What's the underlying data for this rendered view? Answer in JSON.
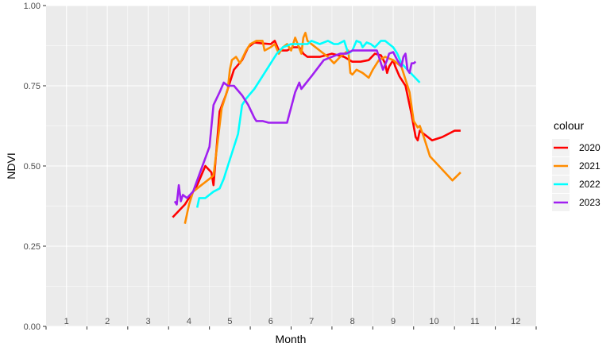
{
  "chart_data": {
    "type": "line",
    "title": "",
    "xlabel": "Month",
    "ylabel": "NDVI",
    "xlim": [
      0.5,
      12.5
    ],
    "ylim": [
      0,
      1
    ],
    "x_tick_labels": [
      "1",
      "2",
      "3",
      "4",
      "5",
      "6",
      "7",
      "8",
      "9",
      "10",
      "11",
      "12"
    ],
    "y_ticks": [
      0,
      0.25,
      0.5,
      0.75,
      1
    ],
    "y_tick_labels": [
      "0.00",
      "0.25",
      "0.50",
      "0.75",
      "1.00"
    ],
    "grid": true,
    "legend": {
      "title": "colour",
      "position": "right"
    },
    "series": [
      {
        "name": "2020",
        "color": "#ff0000",
        "points": [
          [
            3.6,
            0.34
          ],
          [
            3.9,
            0.38
          ],
          [
            4.2,
            0.44
          ],
          [
            4.4,
            0.5
          ],
          [
            4.55,
            0.48
          ],
          [
            4.6,
            0.44
          ],
          [
            4.75,
            0.67
          ],
          [
            4.9,
            0.72
          ],
          [
            5.1,
            0.8
          ],
          [
            5.3,
            0.83
          ],
          [
            5.45,
            0.87
          ],
          [
            5.6,
            0.885
          ],
          [
            5.8,
            0.882
          ],
          [
            6.0,
            0.88
          ],
          [
            6.1,
            0.89
          ],
          [
            6.2,
            0.86
          ],
          [
            6.4,
            0.86
          ],
          [
            6.55,
            0.87
          ],
          [
            6.7,
            0.87
          ],
          [
            6.8,
            0.85
          ],
          [
            6.9,
            0.84
          ],
          [
            7.2,
            0.84
          ],
          [
            7.5,
            0.85
          ],
          [
            7.8,
            0.84
          ],
          [
            8.0,
            0.825
          ],
          [
            8.2,
            0.825
          ],
          [
            8.4,
            0.83
          ],
          [
            8.55,
            0.85
          ],
          [
            8.7,
            0.845
          ],
          [
            8.8,
            0.82
          ],
          [
            8.85,
            0.79
          ],
          [
            8.9,
            0.81
          ],
          [
            9.0,
            0.83
          ],
          [
            9.05,
            0.81
          ],
          [
            9.15,
            0.78
          ],
          [
            9.3,
            0.75
          ],
          [
            9.45,
            0.66
          ],
          [
            9.55,
            0.59
          ],
          [
            9.6,
            0.58
          ],
          [
            9.65,
            0.61
          ],
          [
            9.75,
            0.6
          ],
          [
            9.95,
            0.58
          ],
          [
            10.2,
            0.59
          ],
          [
            10.5,
            0.61
          ],
          [
            10.65,
            0.61
          ]
        ]
      },
      {
        "name": "2021",
        "color": "#ff8c00",
        "points": [
          [
            3.9,
            0.32
          ],
          [
            4.0,
            0.38
          ],
          [
            4.1,
            0.42
          ],
          [
            4.3,
            0.44
          ],
          [
            4.5,
            0.46
          ],
          [
            4.6,
            0.47
          ],
          [
            4.8,
            0.68
          ],
          [
            4.95,
            0.74
          ],
          [
            5.0,
            0.8
          ],
          [
            5.05,
            0.83
          ],
          [
            5.15,
            0.84
          ],
          [
            5.25,
            0.82
          ],
          [
            5.4,
            0.86
          ],
          [
            5.5,
            0.88
          ],
          [
            5.65,
            0.89
          ],
          [
            5.8,
            0.89
          ],
          [
            5.85,
            0.86
          ],
          [
            6.0,
            0.87
          ],
          [
            6.1,
            0.88
          ],
          [
            6.2,
            0.85
          ],
          [
            6.3,
            0.87
          ],
          [
            6.4,
            0.88
          ],
          [
            6.5,
            0.86
          ],
          [
            6.6,
            0.9
          ],
          [
            6.75,
            0.85
          ],
          [
            6.8,
            0.9
          ],
          [
            6.85,
            0.915
          ],
          [
            6.9,
            0.89
          ],
          [
            7.0,
            0.88
          ],
          [
            7.2,
            0.86
          ],
          [
            7.4,
            0.84
          ],
          [
            7.55,
            0.82
          ],
          [
            7.7,
            0.84
          ],
          [
            7.8,
            0.85
          ],
          [
            7.9,
            0.86
          ],
          [
            7.95,
            0.79
          ],
          [
            8.0,
            0.785
          ],
          [
            8.1,
            0.8
          ],
          [
            8.25,
            0.79
          ],
          [
            8.4,
            0.775
          ],
          [
            8.5,
            0.8
          ],
          [
            8.65,
            0.83
          ],
          [
            8.8,
            0.84
          ],
          [
            9.0,
            0.83
          ],
          [
            9.2,
            0.81
          ],
          [
            9.4,
            0.73
          ],
          [
            9.5,
            0.64
          ],
          [
            9.6,
            0.62
          ],
          [
            9.65,
            0.625
          ],
          [
            9.75,
            0.59
          ],
          [
            9.9,
            0.53
          ],
          [
            10.45,
            0.455
          ],
          [
            10.65,
            0.48
          ]
        ]
      },
      {
        "name": "2022",
        "color": "#00ffff",
        "points": [
          [
            4.2,
            0.37
          ],
          [
            4.25,
            0.4
          ],
          [
            4.4,
            0.4
          ],
          [
            4.6,
            0.42
          ],
          [
            4.75,
            0.43
          ],
          [
            4.85,
            0.46
          ],
          [
            4.9,
            0.48
          ],
          [
            5.0,
            0.52
          ],
          [
            5.2,
            0.6
          ],
          [
            5.3,
            0.69
          ],
          [
            5.4,
            0.71
          ],
          [
            5.6,
            0.74
          ],
          [
            5.8,
            0.78
          ],
          [
            6.0,
            0.82
          ],
          [
            6.15,
            0.85
          ],
          [
            6.3,
            0.87
          ],
          [
            6.5,
            0.88
          ],
          [
            6.7,
            0.88
          ],
          [
            6.9,
            0.88
          ],
          [
            7.0,
            0.89
          ],
          [
            7.2,
            0.88
          ],
          [
            7.4,
            0.89
          ],
          [
            7.55,
            0.88
          ],
          [
            7.65,
            0.88
          ],
          [
            7.8,
            0.89
          ],
          [
            7.9,
            0.85
          ],
          [
            8.0,
            0.86
          ],
          [
            8.1,
            0.89
          ],
          [
            8.2,
            0.885
          ],
          [
            8.25,
            0.87
          ],
          [
            8.35,
            0.885
          ],
          [
            8.45,
            0.88
          ],
          [
            8.55,
            0.87
          ],
          [
            8.7,
            0.89
          ],
          [
            8.8,
            0.89
          ],
          [
            8.9,
            0.88
          ],
          [
            9.0,
            0.87
          ],
          [
            9.1,
            0.85
          ],
          [
            9.2,
            0.82
          ],
          [
            9.35,
            0.8
          ],
          [
            9.5,
            0.78
          ],
          [
            9.65,
            0.76
          ]
        ]
      },
      {
        "name": "2023",
        "color": "#a020f0",
        "points": [
          [
            3.65,
            0.39
          ],
          [
            3.7,
            0.38
          ],
          [
            3.75,
            0.44
          ],
          [
            3.8,
            0.39
          ],
          [
            3.85,
            0.41
          ],
          [
            3.95,
            0.4
          ],
          [
            4.1,
            0.42
          ],
          [
            4.3,
            0.49
          ],
          [
            4.5,
            0.56
          ],
          [
            4.6,
            0.69
          ],
          [
            4.75,
            0.73
          ],
          [
            4.85,
            0.76
          ],
          [
            4.95,
            0.75
          ],
          [
            5.1,
            0.75
          ],
          [
            5.3,
            0.72
          ],
          [
            5.45,
            0.69
          ],
          [
            5.6,
            0.65
          ],
          [
            5.65,
            0.64
          ],
          [
            5.8,
            0.64
          ],
          [
            5.95,
            0.635
          ],
          [
            6.25,
            0.635
          ],
          [
            6.4,
            0.635
          ],
          [
            6.6,
            0.73
          ],
          [
            6.7,
            0.76
          ],
          [
            6.75,
            0.74
          ],
          [
            7.0,
            0.78
          ],
          [
            7.3,
            0.83
          ],
          [
            7.5,
            0.84
          ],
          [
            7.7,
            0.85
          ],
          [
            7.85,
            0.85
          ],
          [
            8.0,
            0.86
          ],
          [
            8.3,
            0.86
          ],
          [
            8.55,
            0.86
          ],
          [
            8.6,
            0.86
          ],
          [
            8.75,
            0.8
          ],
          [
            8.85,
            0.83
          ],
          [
            8.9,
            0.85
          ],
          [
            9.0,
            0.855
          ],
          [
            9.1,
            0.83
          ],
          [
            9.2,
            0.81
          ],
          [
            9.25,
            0.84
          ],
          [
            9.3,
            0.85
          ],
          [
            9.35,
            0.8
          ],
          [
            9.4,
            0.79
          ],
          [
            9.45,
            0.82
          ],
          [
            9.5,
            0.82
          ],
          [
            9.55,
            0.825
          ]
        ]
      }
    ]
  }
}
